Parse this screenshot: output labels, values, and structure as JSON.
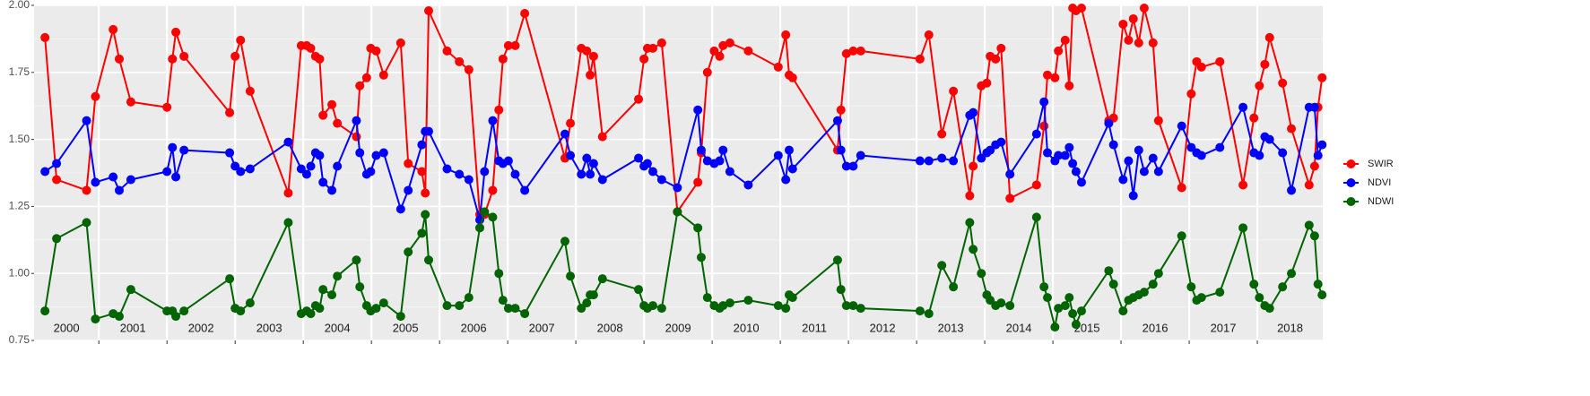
{
  "chart_data": {
    "type": "line",
    "x": [
      2000.21,
      2000.38,
      2000.82,
      2000.95,
      2001.21,
      2001.3,
      2001.47,
      2002.0,
      2002.08,
      2002.13,
      2002.25,
      2002.92,
      2003.0,
      2003.08,
      2003.22,
      2003.78,
      2003.97,
      2004.05,
      2004.11,
      2004.18,
      2004.24,
      2004.29,
      2004.42,
      2004.5,
      2004.78,
      2004.83,
      2004.93,
      2004.99,
      2005.07,
      2005.18,
      2005.43,
      2005.54,
      2005.74,
      2005.79,
      2005.84,
      2006.11,
      2006.29,
      2006.43,
      2006.59,
      2006.66,
      2006.78,
      2006.87,
      2006.93,
      2007.01,
      2007.11,
      2007.25,
      2007.84,
      2007.92,
      2008.08,
      2008.16,
      2008.21,
      2008.26,
      2008.39,
      2008.92,
      2009.0,
      2009.05,
      2009.13,
      2009.26,
      2009.49,
      2009.79,
      2009.84,
      2009.93,
      2010.03,
      2010.11,
      2010.16,
      2010.26,
      2010.53,
      2010.97,
      2011.08,
      2011.13,
      2011.18,
      2011.84,
      2011.89,
      2011.97,
      2012.07,
      2012.18,
      2013.05,
      2013.18,
      2013.37,
      2013.54,
      2013.78,
      2013.83,
      2013.95,
      2014.03,
      2014.08,
      2014.16,
      2014.24,
      2014.37,
      2014.76,
      2014.87,
      2014.92,
      2015.03,
      2015.08,
      2015.18,
      2015.24,
      2015.29,
      2015.34,
      2015.42,
      2015.82,
      2015.89,
      2016.03,
      2016.11,
      2016.18,
      2016.26,
      2016.34,
      2016.47,
      2016.55,
      2016.89,
      2017.03,
      2017.11,
      2017.18,
      2017.45,
      2017.79,
      2017.95,
      2018.03,
      2018.11,
      2018.18,
      2018.37,
      2018.5,
      2018.76,
      2018.84,
      2018.89,
      2018.95
    ],
    "series": [
      {
        "name": "SWIR",
        "color": "#ff0000",
        "values": [
          1.88,
          1.35,
          1.31,
          1.66,
          1.91,
          1.8,
          1.64,
          1.62,
          1.8,
          1.9,
          1.81,
          1.6,
          1.81,
          1.87,
          1.68,
          1.3,
          1.85,
          1.85,
          1.84,
          1.81,
          1.8,
          1.59,
          1.63,
          1.56,
          1.51,
          1.7,
          1.73,
          1.84,
          1.83,
          1.74,
          1.86,
          1.41,
          1.38,
          1.3,
          1.98,
          1.83,
          1.79,
          1.76,
          1.22,
          1.22,
          1.31,
          1.61,
          1.8,
          1.85,
          1.85,
          1.97,
          1.43,
          1.56,
          1.84,
          1.83,
          1.74,
          1.81,
          1.51,
          1.65,
          1.8,
          1.84,
          1.84,
          1.86,
          1.23,
          1.34,
          1.45,
          1.75,
          1.83,
          1.81,
          1.85,
          1.86,
          1.83,
          1.77,
          1.89,
          1.74,
          1.73,
          1.46,
          1.61,
          1.82,
          1.83,
          1.83,
          1.8,
          1.89,
          1.52,
          1.68,
          1.29,
          1.4,
          1.7,
          1.71,
          1.81,
          1.8,
          1.84,
          1.28,
          1.33,
          1.55,
          1.74,
          1.73,
          1.83,
          1.87,
          1.7,
          1.99,
          1.98,
          1.99,
          1.57,
          1.58,
          1.93,
          1.87,
          1.95,
          1.86,
          1.99,
          1.86,
          1.57,
          1.32,
          1.67,
          1.79,
          1.77,
          1.79,
          1.33,
          1.58,
          1.7,
          1.78,
          1.88,
          1.71,
          1.54,
          1.33,
          1.4,
          1.62,
          1.73
        ]
      },
      {
        "name": "NDVI",
        "color": "#0000ff",
        "values": [
          1.38,
          1.41,
          1.57,
          1.34,
          1.36,
          1.31,
          1.35,
          1.38,
          1.47,
          1.36,
          1.46,
          1.45,
          1.4,
          1.38,
          1.39,
          1.49,
          1.39,
          1.37,
          1.4,
          1.45,
          1.44,
          1.34,
          1.31,
          1.4,
          1.57,
          1.45,
          1.37,
          1.38,
          1.44,
          1.45,
          1.24,
          1.31,
          1.48,
          1.53,
          1.53,
          1.39,
          1.37,
          1.35,
          1.2,
          1.38,
          1.57,
          1.42,
          1.41,
          1.42,
          1.37,
          1.31,
          1.52,
          1.44,
          1.37,
          1.43,
          1.37,
          1.41,
          1.35,
          1.43,
          1.4,
          1.41,
          1.38,
          1.35,
          1.32,
          1.61,
          1.46,
          1.42,
          1.41,
          1.42,
          1.46,
          1.38,
          1.33,
          1.44,
          1.35,
          1.46,
          1.39,
          1.57,
          1.46,
          1.4,
          1.4,
          1.44,
          1.42,
          1.42,
          1.43,
          1.42,
          1.59,
          1.6,
          1.43,
          1.45,
          1.46,
          1.48,
          1.49,
          1.37,
          1.52,
          1.64,
          1.45,
          1.42,
          1.44,
          1.44,
          1.47,
          1.41,
          1.38,
          1.34,
          1.56,
          1.48,
          1.35,
          1.42,
          1.29,
          1.46,
          1.38,
          1.43,
          1.38,
          1.55,
          1.47,
          1.45,
          1.44,
          1.47,
          1.62,
          1.45,
          1.44,
          1.51,
          1.5,
          1.45,
          1.31,
          1.62,
          1.62,
          1.44,
          1.48
        ]
      },
      {
        "name": "NDWI",
        "color": "#006400",
        "values": [
          0.86,
          1.13,
          1.19,
          0.83,
          0.85,
          0.84,
          0.94,
          0.86,
          0.86,
          0.84,
          0.86,
          0.98,
          0.87,
          0.86,
          0.89,
          1.19,
          0.85,
          0.86,
          0.85,
          0.88,
          0.87,
          0.94,
          0.92,
          0.99,
          1.05,
          0.95,
          0.88,
          0.86,
          0.87,
          0.89,
          0.84,
          1.08,
          1.15,
          1.22,
          1.05,
          0.88,
          0.88,
          0.91,
          1.17,
          1.23,
          1.21,
          1.0,
          0.9,
          0.87,
          0.87,
          0.85,
          1.12,
          0.99,
          0.87,
          0.89,
          0.92,
          0.92,
          0.98,
          0.94,
          0.88,
          0.87,
          0.88,
          0.87,
          1.23,
          1.17,
          1.06,
          0.91,
          0.88,
          0.87,
          0.88,
          0.89,
          0.9,
          0.88,
          0.87,
          0.92,
          0.91,
          1.05,
          0.94,
          0.88,
          0.88,
          0.87,
          0.86,
          0.85,
          1.03,
          0.95,
          1.19,
          1.09,
          1.0,
          0.92,
          0.9,
          0.88,
          0.89,
          0.88,
          1.21,
          0.95,
          0.91,
          0.8,
          0.87,
          0.88,
          0.91,
          0.85,
          0.81,
          0.86,
          1.01,
          0.96,
          0.86,
          0.9,
          0.91,
          0.92,
          0.93,
          0.96,
          1.0,
          1.14,
          0.95,
          0.9,
          0.91,
          0.93,
          1.17,
          0.96,
          0.91,
          0.88,
          0.87,
          0.95,
          1.0,
          1.18,
          1.14,
          0.96,
          0.92
        ]
      }
    ],
    "xlim": [
      2000.05,
      2018.96
    ],
    "xticks": [
      2000,
      2001,
      2002,
      2003,
      2004,
      2005,
      2006,
      2007,
      2008,
      2009,
      2010,
      2011,
      2012,
      2013,
      2014,
      2015,
      2016,
      2017,
      2018
    ],
    "ylim": [
      0.75,
      2.0
    ],
    "yticks": [
      0.75,
      {
        "value": 1,
        "label": "1.00"
      },
      1.25,
      {
        "value": 1.5,
        "label": "1.50"
      },
      1.75,
      {
        "value": 2,
        "label": "2.00"
      }
    ],
    "grid": true,
    "legend": "right"
  }
}
